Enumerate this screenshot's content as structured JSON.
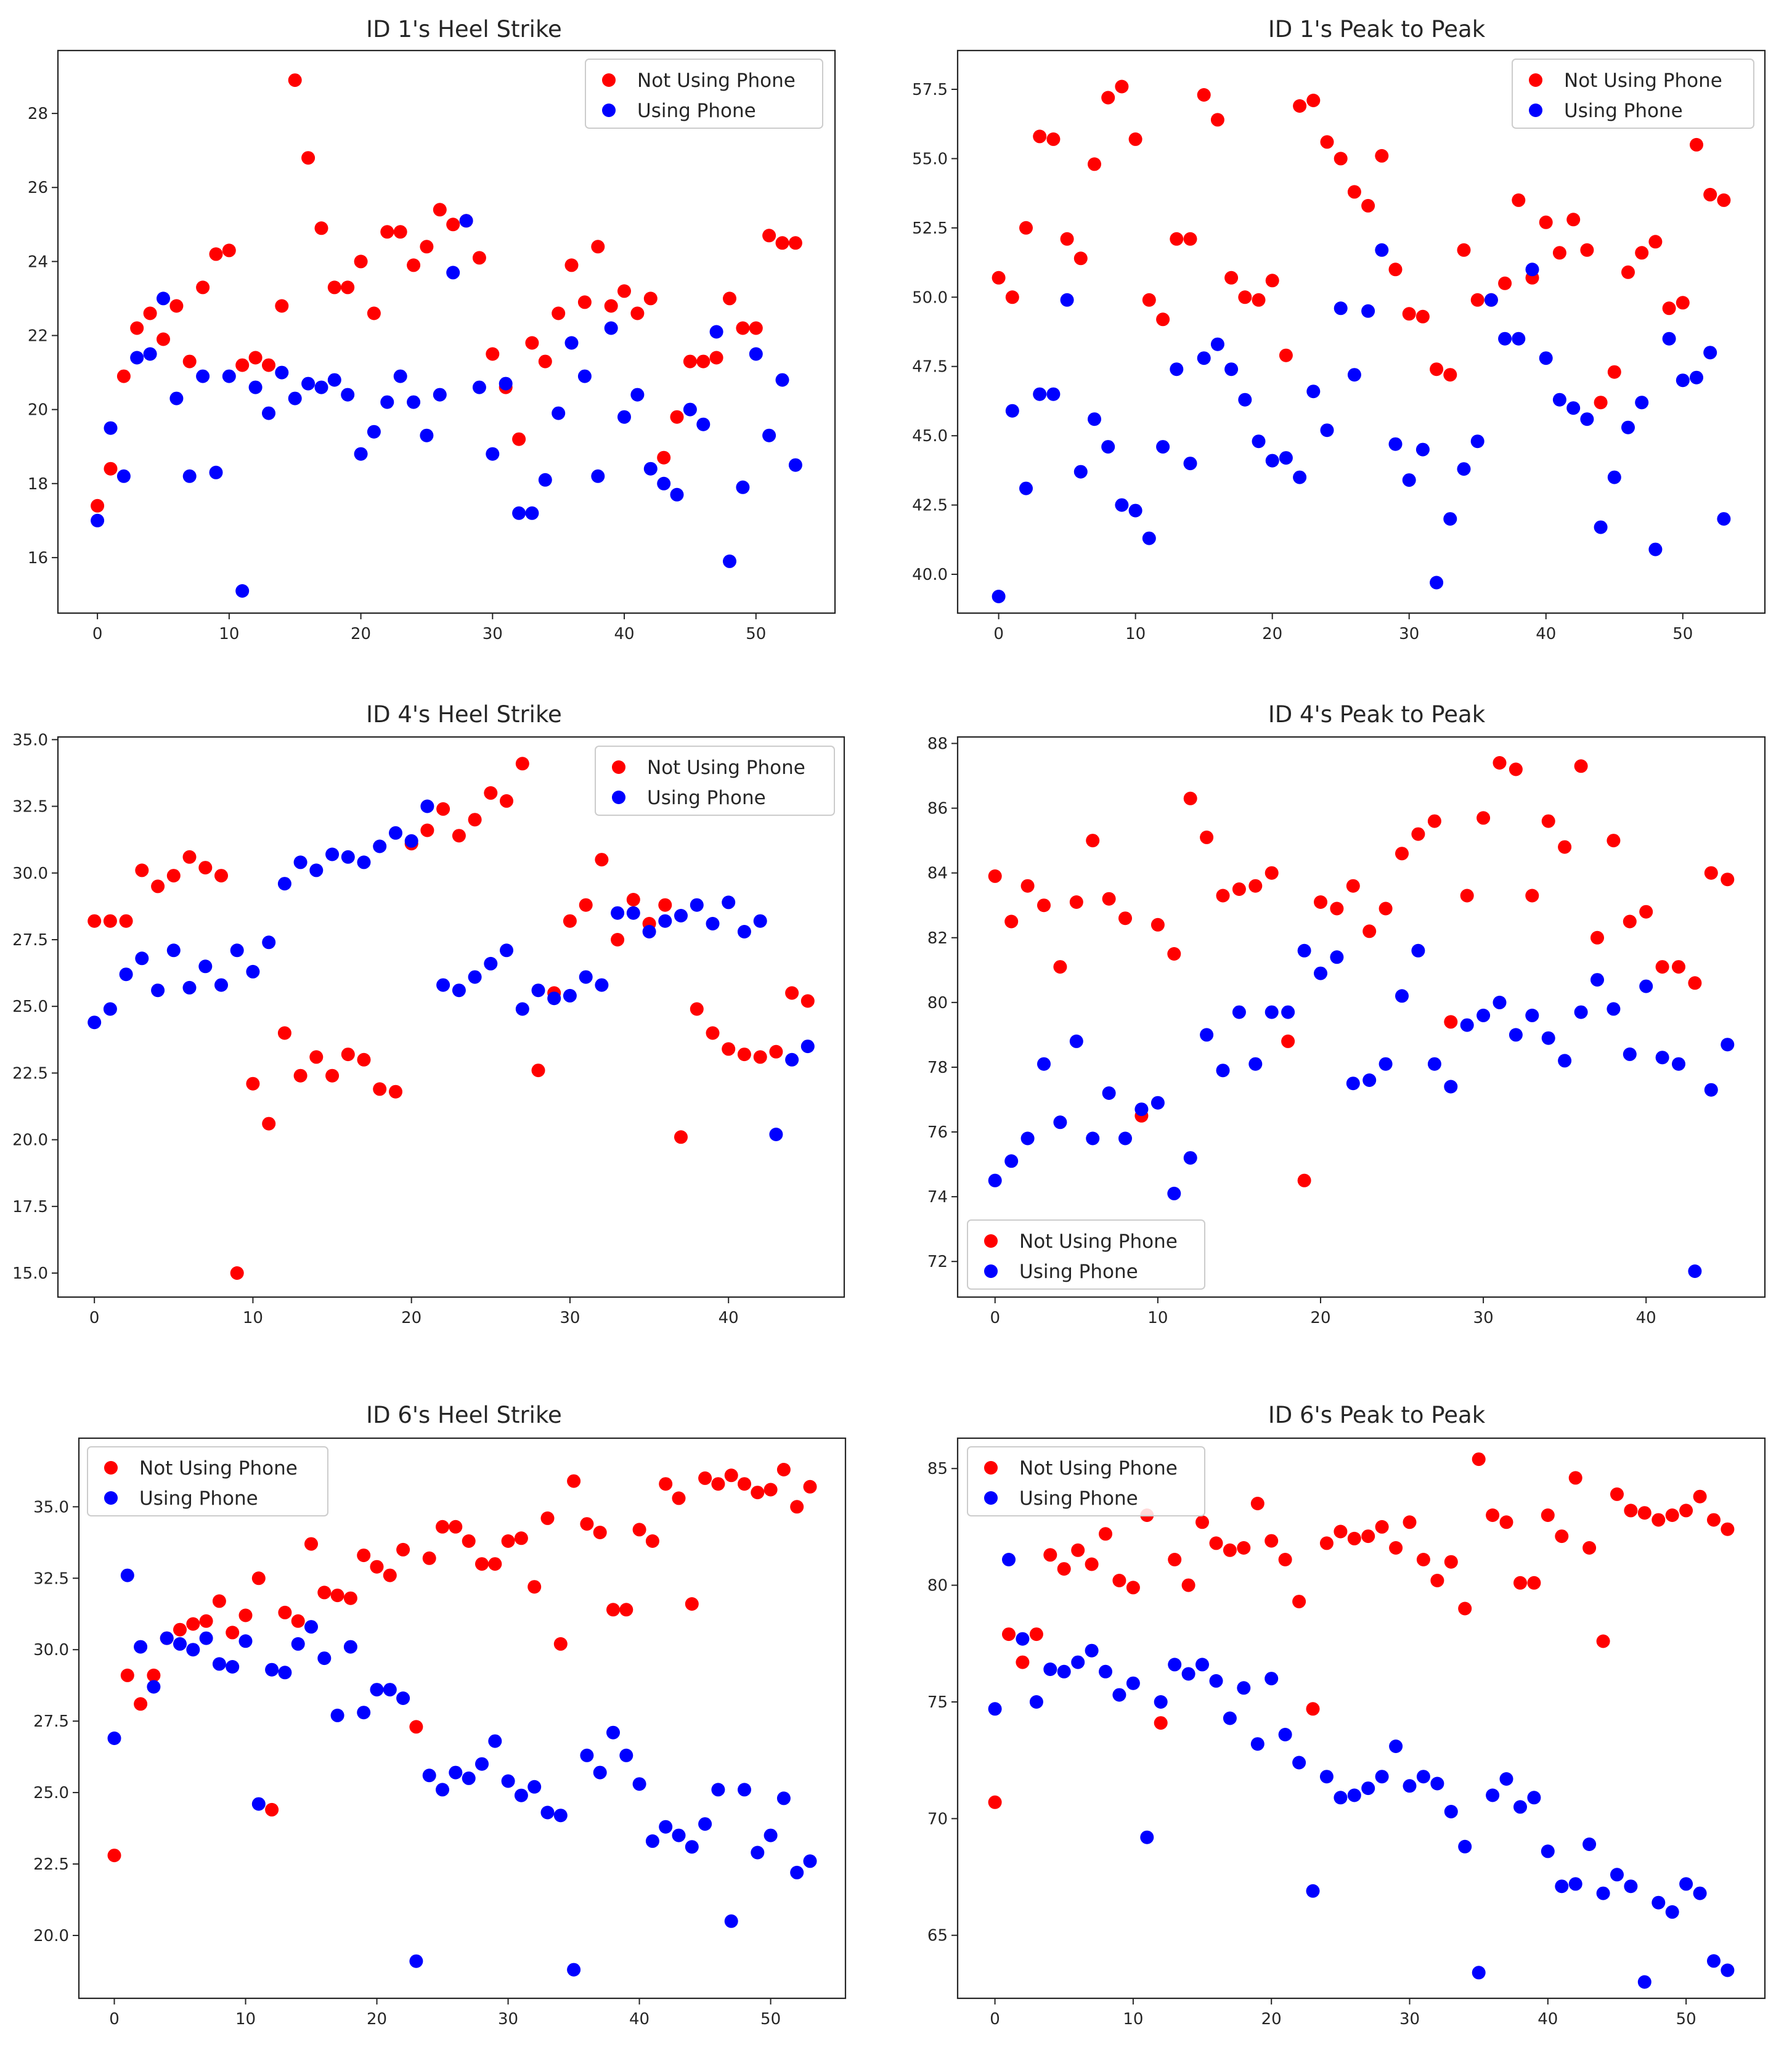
{
  "colors": {
    "not_using": "#ff0000",
    "using": "#0000ff"
  },
  "chart_data": [
    {
      "type": "scatter",
      "title": "ID 1's Heel Strike",
      "legend": [
        "Not Using Phone",
        "Using Phone"
      ],
      "legend_position": "top-right",
      "xlim": [
        -3,
        56
      ],
      "ylim": [
        14.5,
        29.7
      ],
      "xticks": [
        0,
        10,
        20,
        30,
        40,
        50
      ],
      "yticks": [
        16,
        18,
        20,
        22,
        24,
        26,
        28
      ],
      "ytick_labels": [
        "16",
        "18",
        "20",
        "22",
        "24",
        "26",
        "28"
      ],
      "series": [
        {
          "name": "Not Using Phone",
          "color": "#ff0000",
          "values": [
            17.4,
            18.4,
            20.9,
            22.2,
            22.6,
            21.9,
            22.8,
            21.3,
            23.3,
            24.2,
            24.3,
            21.2,
            21.4,
            21.2,
            22.8,
            28.9,
            26.8,
            24.9,
            23.3,
            23.3,
            24.0,
            22.6,
            24.8,
            24.8,
            23.9,
            24.4,
            25.4,
            25.0,
            25.1,
            24.1,
            21.5,
            20.6,
            19.2,
            21.8,
            21.3,
            22.6,
            23.9,
            22.9,
            24.4,
            22.8,
            23.2,
            22.6,
            23.0,
            18.7,
            19.8,
            21.3,
            21.3,
            21.4,
            23.0,
            22.2,
            22.2,
            24.7,
            24.5,
            24.5
          ]
        },
        {
          "name": "Using Phone",
          "color": "#0000ff",
          "values": [
            17.0,
            19.5,
            18.2,
            21.4,
            21.5,
            23.0,
            20.3,
            18.2,
            20.9,
            18.3,
            20.9,
            15.1,
            20.6,
            19.9,
            21.0,
            20.3,
            20.7,
            20.6,
            20.8,
            20.4,
            18.8,
            19.4,
            20.2,
            20.9,
            20.2,
            19.3,
            20.4,
            23.7,
            25.1,
            20.6,
            18.8,
            20.7,
            17.2,
            17.2,
            18.1,
            19.9,
            21.8,
            20.9,
            18.2,
            22.2,
            19.8,
            20.4,
            18.4,
            18.0,
            17.7,
            20.0,
            19.6,
            22.1,
            15.9,
            17.9,
            21.5,
            19.3,
            20.8,
            18.5
          ]
        }
      ]
    },
    {
      "type": "scatter",
      "title": "ID 1's Peak to Peak",
      "legend": [
        "Not Using Phone",
        "Using Phone"
      ],
      "legend_position": "top-right",
      "xlim": [
        -3,
        56
      ],
      "ylim": [
        38.6,
        58.9
      ],
      "xticks": [
        0,
        10,
        20,
        30,
        40,
        50
      ],
      "yticks": [
        40,
        42.5,
        45,
        47.5,
        50,
        52.5,
        55,
        57.5
      ],
      "ytick_labels": [
        "40.0",
        "42.5",
        "45.0",
        "47.5",
        "50.0",
        "52.5",
        "55.0",
        "57.5"
      ],
      "series": [
        {
          "name": "Not Using Phone",
          "color": "#ff0000",
          "values": [
            50.7,
            50.0,
            52.5,
            55.8,
            55.7,
            52.1,
            51.4,
            54.8,
            57.2,
            57.6,
            55.7,
            49.9,
            49.2,
            52.1,
            52.1,
            57.3,
            56.4,
            50.7,
            50.0,
            49.9,
            50.6,
            47.9,
            56.9,
            57.1,
            55.6,
            55.0,
            53.8,
            53.3,
            55.1,
            51.0,
            49.4,
            49.3,
            47.4,
            47.2,
            51.7,
            49.9,
            49.9,
            50.5,
            53.5,
            50.7,
            52.7,
            51.6,
            52.8,
            51.7,
            46.2,
            47.3,
            50.9,
            51.6,
            52.0,
            49.6,
            49.8,
            55.5,
            53.7,
            53.5
          ]
        },
        {
          "name": "Using Phone",
          "color": "#0000ff",
          "values": [
            39.2,
            45.9,
            43.1,
            46.5,
            46.5,
            49.9,
            43.7,
            45.6,
            44.6,
            42.5,
            42.3,
            41.3,
            44.6,
            47.4,
            44.0,
            47.8,
            48.3,
            47.4,
            46.3,
            44.8,
            44.1,
            44.2,
            43.5,
            46.6,
            45.2,
            49.6,
            47.2,
            49.5,
            51.7,
            44.7,
            43.4,
            44.5,
            39.7,
            42.0,
            43.8,
            44.8,
            49.9,
            48.5,
            48.5,
            51.0,
            47.8,
            46.3,
            46.0,
            45.6,
            41.7,
            43.5,
            45.3,
            46.2,
            40.9,
            48.5,
            47.0,
            47.1,
            48.0,
            42.0
          ]
        }
      ]
    },
    {
      "type": "scatter",
      "title": "ID 4's Heel Strike",
      "legend": [
        "Not Using Phone",
        "Using Phone"
      ],
      "legend_position": "top-right",
      "xlim": [
        -2.3,
        47.3
      ],
      "ylim": [
        14.1,
        35.1
      ],
      "xticks": [
        0,
        10,
        20,
        30,
        40
      ],
      "yticks": [
        15,
        17.5,
        20,
        22.5,
        25,
        27.5,
        30,
        32.5,
        35
      ],
      "ytick_labels": [
        "15.0",
        "17.5",
        "20.0",
        "22.5",
        "25.0",
        "27.5",
        "30.0",
        "32.5",
        "35.0"
      ],
      "series": [
        {
          "name": "Not Using Phone",
          "color": "#ff0000",
          "values": [
            28.2,
            28.2,
            28.2,
            30.1,
            29.5,
            29.9,
            30.6,
            30.2,
            29.9,
            15.0,
            22.1,
            20.6,
            24.0,
            22.4,
            23.1,
            22.4,
            23.2,
            23.0,
            21.9,
            21.8,
            31.1,
            31.6,
            32.4,
            31.4,
            32.0,
            33.0,
            32.7,
            34.1,
            22.6,
            25.5,
            28.2,
            28.8,
            30.5,
            27.5,
            29.0,
            28.1,
            28.8,
            20.1,
            24.9,
            24.0,
            23.4,
            23.2,
            23.1,
            23.3,
            25.5,
            25.2
          ]
        },
        {
          "name": "Using Phone",
          "color": "#0000ff",
          "values": [
            24.4,
            24.9,
            26.2,
            26.8,
            25.6,
            27.1,
            25.7,
            26.5,
            25.8,
            27.1,
            26.3,
            27.4,
            29.6,
            30.4,
            30.1,
            30.7,
            30.6,
            30.4,
            31.0,
            31.5,
            31.2,
            32.5,
            25.8,
            25.6,
            26.1,
            26.6,
            27.1,
            24.9,
            25.6,
            25.3,
            25.4,
            26.1,
            25.8,
            28.5,
            28.5,
            27.8,
            28.2,
            28.4,
            28.8,
            28.1,
            28.9,
            27.8,
            28.2,
            20.2,
            23.0,
            23.5
          ]
        }
      ]
    },
    {
      "type": "scatter",
      "title": "ID 4's Peak to Peak",
      "legend": [
        "Not Using Phone",
        "Using Phone"
      ],
      "legend_position": "lower-left",
      "xlim": [
        -2.3,
        47.3
      ],
      "ylim": [
        70.9,
        88.2
      ],
      "xticks": [
        0,
        10,
        20,
        30,
        40
      ],
      "yticks": [
        72,
        74,
        76,
        78,
        80,
        82,
        84,
        86,
        88
      ],
      "ytick_labels": [
        "72",
        "74",
        "76",
        "78",
        "80",
        "82",
        "84",
        "86",
        "88"
      ],
      "series": [
        {
          "name": "Not Using Phone",
          "color": "#ff0000",
          "values": [
            83.9,
            82.5,
            83.6,
            83.0,
            81.1,
            83.1,
            85.0,
            83.2,
            82.6,
            76.5,
            82.4,
            81.5,
            86.3,
            85.1,
            83.3,
            83.5,
            83.6,
            84.0,
            78.8,
            74.5,
            83.1,
            82.9,
            83.6,
            82.2,
            82.9,
            84.6,
            85.2,
            85.6,
            79.4,
            83.3,
            85.7,
            87.4,
            87.2,
            83.3,
            85.6,
            84.8,
            87.3,
            82.0,
            85.0,
            82.5,
            82.8,
            81.1,
            81.1,
            80.6,
            84.0,
            83.8
          ]
        },
        {
          "name": "Using Phone",
          "color": "#0000ff",
          "values": [
            74.5,
            75.1,
            75.8,
            78.1,
            76.3,
            78.8,
            75.8,
            77.2,
            75.8,
            76.7,
            76.9,
            74.1,
            75.2,
            79.0,
            77.9,
            79.7,
            78.1,
            79.7,
            79.7,
            81.6,
            80.9,
            81.4,
            77.5,
            77.6,
            78.1,
            80.2,
            81.6,
            78.1,
            77.4,
            79.3,
            79.6,
            80.0,
            79.0,
            79.6,
            78.9,
            78.2,
            79.7,
            80.7,
            79.8,
            78.4,
            80.5,
            78.3,
            78.1,
            71.7,
            77.3,
            78.7
          ]
        }
      ]
    },
    {
      "type": "scatter",
      "title": "ID 6's Heel Strike",
      "legend": [
        "Not Using Phone",
        "Using Phone"
      ],
      "legend_position": "top-left",
      "xlim": [
        -2.7,
        55.7
      ],
      "ylim": [
        17.8,
        37.4
      ],
      "xticks": [
        0,
        10,
        20,
        30,
        40,
        50
      ],
      "yticks": [
        20,
        22.5,
        25,
        27.5,
        30,
        32.5,
        35
      ],
      "ytick_labels": [
        "20.0",
        "22.5",
        "25.0",
        "27.5",
        "30.0",
        "32.5",
        "35.0"
      ],
      "series": [
        {
          "name": "Not Using Phone",
          "color": "#ff0000",
          "values": [
            22.8,
            29.1,
            28.1,
            29.1,
            30.4,
            30.7,
            30.9,
            31.0,
            31.7,
            30.6,
            31.2,
            32.5,
            24.4,
            31.3,
            31.0,
            33.7,
            32.0,
            31.9,
            31.8,
            33.3,
            32.9,
            32.6,
            33.5,
            27.3,
            33.2,
            34.3,
            34.3,
            33.8,
            33.0,
            33.0,
            33.8,
            33.9,
            32.2,
            34.6,
            30.2,
            35.9,
            34.4,
            34.1,
            31.4,
            31.4,
            34.2,
            33.8,
            35.8,
            35.3,
            31.6,
            36.0,
            35.8,
            36.1,
            35.8,
            35.5,
            35.6,
            36.3,
            35.0,
            35.7
          ]
        },
        {
          "name": "Using Phone",
          "color": "#0000ff",
          "values": [
            26.9,
            32.6,
            30.1,
            28.7,
            30.4,
            30.2,
            30.0,
            30.4,
            29.5,
            29.4,
            30.3,
            24.6,
            29.3,
            29.2,
            30.2,
            30.8,
            29.7,
            27.7,
            30.1,
            27.8,
            28.6,
            28.6,
            28.3,
            19.1,
            25.6,
            25.1,
            25.7,
            25.5,
            26.0,
            26.8,
            25.4,
            24.9,
            25.2,
            24.3,
            24.2,
            18.8,
            26.3,
            25.7,
            27.1,
            26.3,
            25.3,
            23.3,
            23.8,
            23.5,
            23.1,
            23.9,
            25.1,
            20.5,
            25.1,
            22.9,
            23.5,
            24.8,
            22.2,
            22.6
          ]
        }
      ]
    },
    {
      "type": "scatter",
      "title": "ID 6's Peak to Peak",
      "legend": [
        "Not Using Phone",
        "Using Phone"
      ],
      "legend_position": "top-left",
      "xlim": [
        -2.7,
        55.7
      ],
      "ylim": [
        62.3,
        86.3
      ],
      "xticks": [
        0,
        10,
        20,
        30,
        40,
        50
      ],
      "yticks": [
        65,
        70,
        75,
        80,
        85
      ],
      "ytick_labels": [
        "65",
        "70",
        "75",
        "80",
        "85"
      ],
      "series": [
        {
          "name": "Not Using Phone",
          "color": "#ff0000",
          "values": [
            70.7,
            77.9,
            76.7,
            77.9,
            81.3,
            80.7,
            81.5,
            80.9,
            82.2,
            80.2,
            79.9,
            83.0,
            74.1,
            81.1,
            80.0,
            82.7,
            81.8,
            81.5,
            81.6,
            83.5,
            81.9,
            81.1,
            79.3,
            74.7,
            81.8,
            82.3,
            82.0,
            82.1,
            82.5,
            81.6,
            82.7,
            81.1,
            80.2,
            81.0,
            79.0,
            85.4,
            83.0,
            82.7,
            80.1,
            80.1,
            83.0,
            82.1,
            84.6,
            81.6,
            77.6,
            83.9,
            83.2,
            83.1,
            82.8,
            83.0,
            83.2,
            83.8,
            82.8,
            82.4
          ]
        },
        {
          "name": "Using Phone",
          "color": "#0000ff",
          "values": [
            74.7,
            81.1,
            77.7,
            75.0,
            76.4,
            76.3,
            76.7,
            77.2,
            76.3,
            75.3,
            75.8,
            69.2,
            75.0,
            76.6,
            76.2,
            76.6,
            75.9,
            74.3,
            75.6,
            73.2,
            76.0,
            73.6,
            72.4,
            66.9,
            71.8,
            70.9,
            71.0,
            71.3,
            71.8,
            73.1,
            71.4,
            71.8,
            71.5,
            70.3,
            68.8,
            63.4,
            71.0,
            71.7,
            70.5,
            70.9,
            68.6,
            67.1,
            67.2,
            68.9,
            66.8,
            67.6,
            67.1,
            63.0,
            66.4,
            66.0,
            67.2,
            66.8,
            63.9,
            63.5
          ]
        }
      ]
    }
  ]
}
